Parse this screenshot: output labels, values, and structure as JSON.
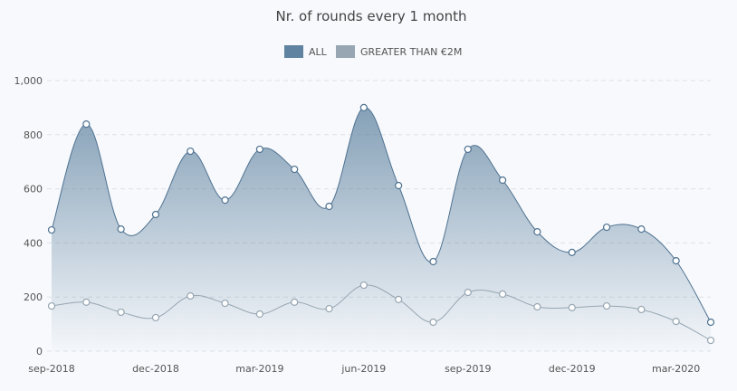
{
  "chart_data": {
    "type": "area",
    "title": "Nr. of rounds every 1 month",
    "xlabel": "",
    "ylabel": "",
    "ylim": [
      0,
      1000
    ],
    "yticks": [
      "0",
      "200",
      "400",
      "600",
      "800",
      "1,000"
    ],
    "ytick_values": [
      0,
      200,
      400,
      600,
      800,
      1000
    ],
    "x": [
      "sep-2018",
      "oct-2018",
      "nov-2018",
      "dec-2018",
      "jan-2019",
      "feb-2019",
      "mar-2019",
      "apr-2019",
      "may-2019",
      "jun-2019",
      "jul-2019",
      "aug-2019",
      "sep-2019",
      "oct-2019",
      "nov-2019",
      "dec-2019",
      "jan-2020",
      "feb-2020",
      "mar-2020",
      "apr-2020"
    ],
    "xtick_labels": [
      "sep-2018",
      "dec-2018",
      "mar-2019",
      "jun-2019",
      "sep-2019",
      "dec-2019",
      "mar-2020"
    ],
    "xtick_indices": [
      0,
      3,
      6,
      9,
      12,
      15,
      18
    ],
    "grid": true,
    "legend_position": "top-center",
    "series": [
      {
        "name": "ALL",
        "color": "#5f83a0",
        "values": [
          448,
          839,
          451,
          505,
          739,
          558,
          746,
          672,
          535,
          900,
          612,
          331,
          746,
          632,
          441,
          365,
          458,
          451,
          334,
          107
        ]
      },
      {
        "name": "GREATER THAN €2M",
        "color": "#97a6b2",
        "values": [
          167,
          181,
          144,
          124,
          204,
          177,
          137,
          181,
          157,
          244,
          191,
          107,
          217,
          211,
          164,
          161,
          167,
          154,
          110,
          40
        ]
      }
    ]
  }
}
